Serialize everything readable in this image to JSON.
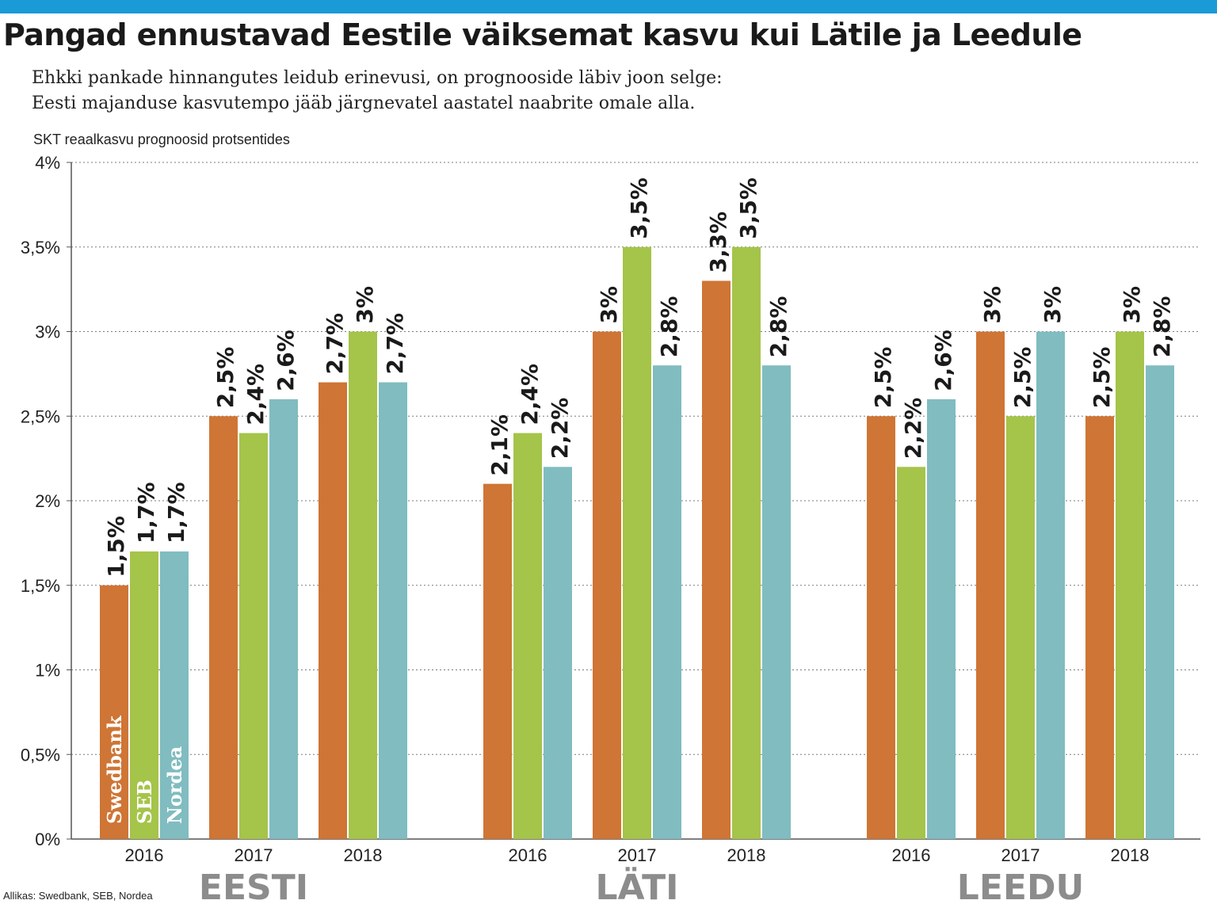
{
  "header": {
    "title": "Pangad ennustavad Eestile väiksemat kasvu kui Lätile ja Leedule",
    "subtitle_line1": "Ehkki pankade hinnangutes leidub erinevusi, on prognooside läbiv joon selge:",
    "subtitle_line2": "Eesti majanduse kasvutempo jääb järgnevatel aastatel naabrite omale alla.",
    "unit_label": "SKT reaalkasvu prognoosid protsentides"
  },
  "footer": {
    "source": "Allikas: Swedbank, SEB, Nordea"
  },
  "colors": {
    "swedbank": "#cf7535",
    "seb": "#a5c44a",
    "nordea": "#80bcc0",
    "accent_bar": "#1a9bd7",
    "group_label": "#8c8c8c"
  },
  "chart_data": {
    "type": "bar",
    "ylim": [
      0,
      4
    ],
    "y_ticks": [
      0,
      0.5,
      1,
      1.5,
      2,
      2.5,
      3,
      3.5,
      4
    ],
    "y_tick_labels": [
      "0%",
      "0,5%",
      "1%",
      "1,5%",
      "2%",
      "2,5%",
      "3%",
      "3,5%",
      "4%"
    ],
    "grid": true,
    "legend_placement": "inside first bars",
    "groups": [
      {
        "name": "EESTI",
        "years": [
          {
            "year": "2016",
            "values": [
              1.5,
              1.7,
              1.7
            ],
            "labels": [
              "1,5%",
              "1,7%",
              "1,7%"
            ]
          },
          {
            "year": "2017",
            "values": [
              2.5,
              2.4,
              2.6
            ],
            "labels": [
              "2,5%",
              "2,4%",
              "2,6%"
            ]
          },
          {
            "year": "2018",
            "values": [
              2.7,
              3.0,
              2.7
            ],
            "labels": [
              "2,7%",
              "3%",
              "2,7%"
            ]
          }
        ]
      },
      {
        "name": "LÄTI",
        "years": [
          {
            "year": "2016",
            "values": [
              2.1,
              2.4,
              2.2
            ],
            "labels": [
              "2,1%",
              "2,4%",
              "2,2%"
            ]
          },
          {
            "year": "2017",
            "values": [
              3.0,
              3.5,
              2.8
            ],
            "labels": [
              "3%",
              "3,5%",
              "2,8%"
            ]
          },
          {
            "year": "2018",
            "values": [
              3.3,
              3.5,
              2.8
            ],
            "labels": [
              "3,3%",
              "3,5%",
              "2,8%"
            ]
          }
        ]
      },
      {
        "name": "LEEDU",
        "years": [
          {
            "year": "2016",
            "values": [
              2.5,
              2.2,
              2.6
            ],
            "labels": [
              "2,5%",
              "2,2%",
              "2,6%"
            ]
          },
          {
            "year": "2017",
            "values": [
              3.0,
              2.5,
              3.0
            ],
            "labels": [
              "3%",
              "2,5%",
              "3%"
            ]
          },
          {
            "year": "2018",
            "values": [
              2.5,
              3.0,
              2.8
            ],
            "labels": [
              "2,5%",
              "3%",
              "2,8%"
            ]
          }
        ]
      }
    ],
    "series": [
      {
        "name": "Swedbank",
        "color_key": "swedbank"
      },
      {
        "name": "SEB",
        "color_key": "seb"
      },
      {
        "name": "Nordea",
        "color_key": "nordea"
      }
    ]
  }
}
